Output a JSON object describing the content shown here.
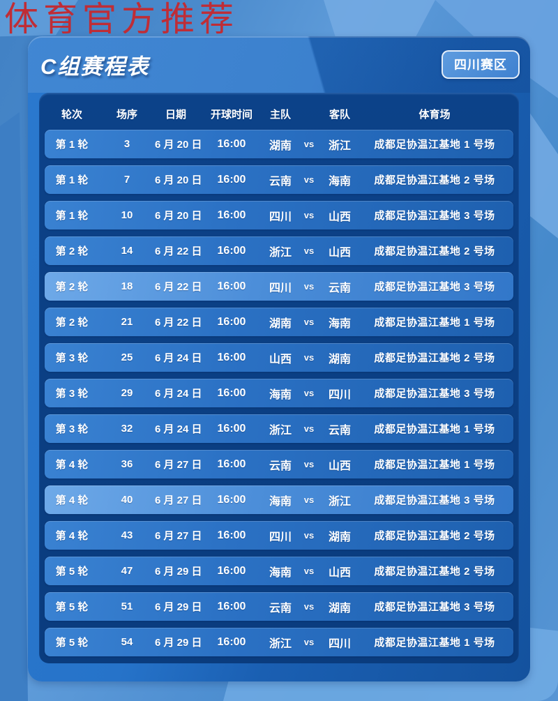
{
  "watermark": "体育官方推荐",
  "header": {
    "title": "C组赛程表",
    "badge": "四川赛区"
  },
  "table": {
    "columns": [
      "轮次",
      "场序",
      "日期",
      "开球时间",
      "主队",
      "客队",
      "体育场"
    ],
    "vs_label": "vs",
    "rows": [
      {
        "round": "第 1 轮",
        "no": "3",
        "date": "6 月 20 日",
        "time": "16:00",
        "home": "湖南",
        "away": "浙江",
        "venue": "成都足协温江基地 1 号场",
        "highlight": false
      },
      {
        "round": "第 1 轮",
        "no": "7",
        "date": "6 月 20 日",
        "time": "16:00",
        "home": "云南",
        "away": "海南",
        "venue": "成都足协温江基地 2 号场",
        "highlight": false
      },
      {
        "round": "第 1 轮",
        "no": "10",
        "date": "6 月 20 日",
        "time": "16:00",
        "home": "四川",
        "away": "山西",
        "venue": "成都足协温江基地 3 号场",
        "highlight": false
      },
      {
        "round": "第 2 轮",
        "no": "14",
        "date": "6 月 22 日",
        "time": "16:00",
        "home": "浙江",
        "away": "山西",
        "venue": "成都足协温江基地 2 号场",
        "highlight": false
      },
      {
        "round": "第 2 轮",
        "no": "18",
        "date": "6 月 22 日",
        "time": "16:00",
        "home": "四川",
        "away": "云南",
        "venue": "成都足协温江基地 3 号场",
        "highlight": true
      },
      {
        "round": "第 2 轮",
        "no": "21",
        "date": "6 月 22 日",
        "time": "16:00",
        "home": "湖南",
        "away": "海南",
        "venue": "成都足协温江基地 1 号场",
        "highlight": false
      },
      {
        "round": "第 3 轮",
        "no": "25",
        "date": "6 月 24 日",
        "time": "16:00",
        "home": "山西",
        "away": "湖南",
        "venue": "成都足协温江基地 2 号场",
        "highlight": false
      },
      {
        "round": "第 3 轮",
        "no": "29",
        "date": "6 月 24 日",
        "time": "16:00",
        "home": "海南",
        "away": "四川",
        "venue": "成都足协温江基地 3 号场",
        "highlight": false
      },
      {
        "round": "第 3 轮",
        "no": "32",
        "date": "6 月 24 日",
        "time": "16:00",
        "home": "浙江",
        "away": "云南",
        "venue": "成都足协温江基地 1 号场",
        "highlight": false
      },
      {
        "round": "第 4 轮",
        "no": "36",
        "date": "6 月 27 日",
        "time": "16:00",
        "home": "云南",
        "away": "山西",
        "venue": "成都足协温江基地 1 号场",
        "highlight": false
      },
      {
        "round": "第 4 轮",
        "no": "40",
        "date": "6 月 27 日",
        "time": "16:00",
        "home": "海南",
        "away": "浙江",
        "venue": "成都足协温江基地 3 号场",
        "highlight": true
      },
      {
        "round": "第 4 轮",
        "no": "43",
        "date": "6 月 27 日",
        "time": "16:00",
        "home": "四川",
        "away": "湖南",
        "venue": "成都足协温江基地 2 号场",
        "highlight": false
      },
      {
        "round": "第 5 轮",
        "no": "47",
        "date": "6 月 29 日",
        "time": "16:00",
        "home": "海南",
        "away": "山西",
        "venue": "成都足协温江基地 2 号场",
        "highlight": false
      },
      {
        "round": "第 5 轮",
        "no": "51",
        "date": "6 月 29 日",
        "time": "16:00",
        "home": "云南",
        "away": "湖南",
        "venue": "成都足协温江基地 3 号场",
        "highlight": false
      },
      {
        "round": "第 5 轮",
        "no": "54",
        "date": "6 月 29 日",
        "time": "16:00",
        "home": "浙江",
        "away": "四川",
        "venue": "成都足协温江基地 1 号场",
        "highlight": false
      }
    ]
  },
  "colors": {
    "watermark_red": "#bf2d36",
    "card_blue": "#2673c9",
    "panel_navy": "#0a3c7e",
    "row_blue": "#2b71c4",
    "row_highlight_blue": "#5c9ce0",
    "badge_blue": "#4f8fd9"
  }
}
